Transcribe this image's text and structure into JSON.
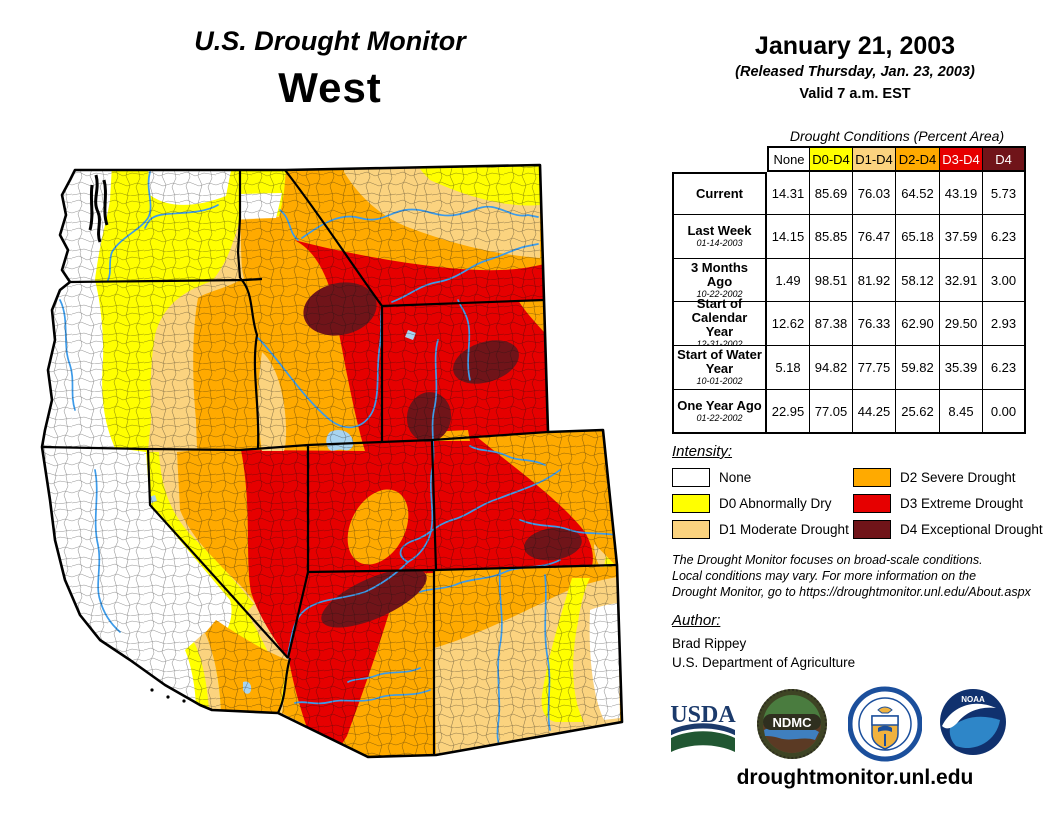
{
  "title": {
    "line1": "U.S. Drought Monitor",
    "line2": "West"
  },
  "release": {
    "date": "January 21, 2003",
    "released": "(Released Thursday, Jan. 23, 2003)",
    "valid": "Valid 7 a.m. EST"
  },
  "table": {
    "caption": "Drought Conditions (Percent Area)",
    "columns": [
      {
        "label": "None",
        "bg": "#FFFFFF",
        "fg": "#000000"
      },
      {
        "label": "D0-D4",
        "bg": "#FFFF00",
        "fg": "#000000"
      },
      {
        "label": "D1-D4",
        "bg": "#FBD37F",
        "fg": "#000000"
      },
      {
        "label": "D2-D4",
        "bg": "#FFAA00",
        "fg": "#000000"
      },
      {
        "label": "D3-D4",
        "bg": "#E60000",
        "fg": "#FFFFFF"
      },
      {
        "label": "D4",
        "bg": "#701419",
        "fg": "#FFFFFF"
      }
    ],
    "rows": [
      {
        "label": "Current",
        "sublabel": "",
        "values": [
          "14.31",
          "85.69",
          "76.03",
          "64.52",
          "43.19",
          "5.73"
        ]
      },
      {
        "label": "Last Week",
        "sublabel": "01-14-2003",
        "values": [
          "14.15",
          "85.85",
          "76.47",
          "65.18",
          "37.59",
          "6.23"
        ]
      },
      {
        "label": "3 Months Ago",
        "sublabel": "10-22-2002",
        "values": [
          "1.49",
          "98.51",
          "81.92",
          "58.12",
          "32.91",
          "3.00"
        ]
      },
      {
        "label": "Start of Calendar Year",
        "sublabel": "12-31-2002",
        "values": [
          "12.62",
          "87.38",
          "76.33",
          "62.90",
          "29.50",
          "2.93"
        ]
      },
      {
        "label": "Start of Water Year",
        "sublabel": "10-01-2002",
        "values": [
          "5.18",
          "94.82",
          "77.75",
          "59.82",
          "35.39",
          "6.23"
        ]
      },
      {
        "label": "One Year Ago",
        "sublabel": "01-22-2002",
        "values": [
          "22.95",
          "77.05",
          "44.25",
          "25.62",
          "8.45",
          "0.00"
        ]
      }
    ]
  },
  "legend": {
    "heading": "Intensity:",
    "items": [
      {
        "label": "None",
        "color": "#FFFFFF"
      },
      {
        "label": "D0 Abnormally Dry",
        "color": "#FFFF00"
      },
      {
        "label": "D1 Moderate Drought",
        "color": "#FBD37F"
      },
      {
        "label": "D2 Severe Drought",
        "color": "#FFAA00"
      },
      {
        "label": "D3 Extreme Drought",
        "color": "#E60000"
      },
      {
        "label": "D4 Exceptional Drought",
        "color": "#701419"
      }
    ]
  },
  "disclaimer": {
    "line1": "The Drought Monitor focuses on broad-scale conditions.",
    "line2": "Local conditions may vary. For more information on the",
    "line3": "Drought Monitor, go to https://droughtmonitor.unl.edu/About.aspx"
  },
  "author": {
    "heading": "Author:",
    "name": "Brad Rippey",
    "org": "U.S. Department of Agriculture"
  },
  "logos": {
    "usda_text": "USDA",
    "ndmc_text": "NDMC",
    "noaa_text": "NOAA"
  },
  "footer": {
    "url": "droughtmonitor.unl.edu"
  },
  "map": {
    "type": "choropleth-drought-map",
    "region": "West",
    "colors": {
      "d0": "#FFFF00",
      "d1": "#FBD37F",
      "d2": "#FFAA00",
      "d3": "#E60000",
      "d4": "#701419",
      "river": "#3D9BE9",
      "lake": "#A8D4F0"
    }
  }
}
